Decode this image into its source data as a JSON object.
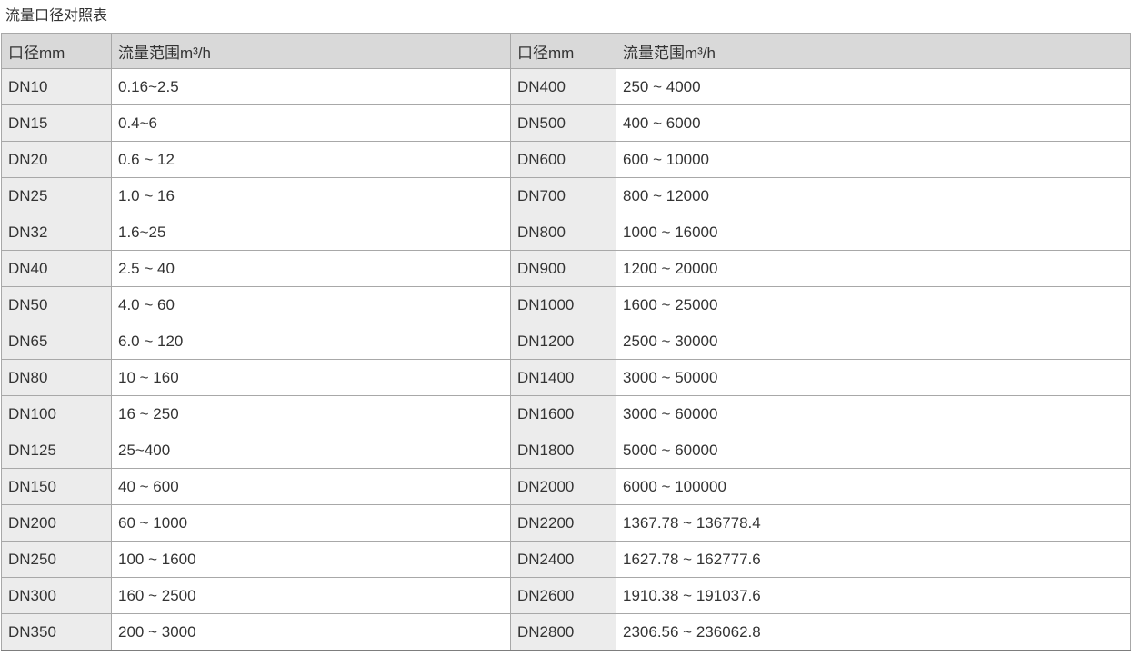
{
  "page": {
    "title": "流量口径对照表"
  },
  "colors": {
    "header_bg": "#d9d9d9",
    "diameter_cell_bg": "#ececec",
    "value_cell_bg": "#ffffff",
    "border": "#a8a8a8",
    "bottom_border": "#7d7d7d",
    "text": "#333333"
  },
  "table": {
    "headers": [
      {
        "label": "口径mm"
      },
      {
        "label": "流量范围m³/h"
      },
      {
        "label": "口径mm"
      },
      {
        "label": "流量范围m³/h"
      }
    ],
    "rows": [
      [
        "DN10",
        "0.16~2.5",
        "DN400",
        "250 ~ 4000"
      ],
      [
        "DN15",
        "0.4~6",
        "DN500",
        "400 ~ 6000"
      ],
      [
        "DN20",
        "0.6 ~ 12",
        "DN600",
        "600 ~ 10000"
      ],
      [
        "DN25",
        "1.0 ~ 16",
        "DN700",
        "800 ~ 12000"
      ],
      [
        "DN32",
        "1.6~25",
        "DN800",
        "1000 ~ 16000"
      ],
      [
        "DN40",
        "2.5 ~ 40",
        "DN900",
        "1200 ~ 20000"
      ],
      [
        "DN50",
        "4.0 ~ 60",
        "DN1000",
        "1600 ~ 25000"
      ],
      [
        "DN65",
        "6.0 ~ 120",
        "DN1200",
        "2500 ~ 30000"
      ],
      [
        "DN80",
        "10 ~ 160",
        "DN1400",
        "3000 ~ 50000"
      ],
      [
        "DN100",
        "16 ~ 250",
        "DN1600",
        "3000 ~ 60000"
      ],
      [
        "DN125",
        "25~400",
        "DN1800",
        "5000 ~ 60000"
      ],
      [
        "DN150",
        "40 ~ 600",
        "DN2000",
        "6000 ~ 100000"
      ],
      [
        "DN200",
        "60 ~ 1000",
        "DN2200",
        "1367.78 ~ 136778.4"
      ],
      [
        "DN250",
        "100 ~ 1600",
        "DN2400",
        "1627.78 ~ 162777.6"
      ],
      [
        "DN300",
        "160 ~ 2500",
        "DN2600",
        "1910.38 ~ 191037.6"
      ],
      [
        "DN350",
        "200 ~ 3000",
        "DN2800",
        "2306.56 ~ 236062.8"
      ]
    ]
  }
}
